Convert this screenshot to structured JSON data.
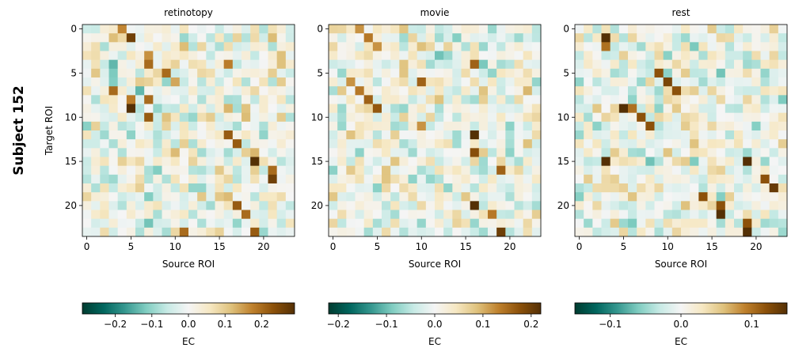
{
  "figure": {
    "row_label": "Subject 152",
    "matrix_size": 24,
    "xlabel": "Source ROI",
    "ylabel": "Target ROI",
    "cbar_label": "EC",
    "colormap": [
      "#003c30",
      "#01665e",
      "#35978f",
      "#80cdc1",
      "#c7eae5",
      "#f5f5f5",
      "#f6e8c3",
      "#dfc27d",
      "#bf812d",
      "#8c510a",
      "#543005"
    ]
  },
  "chart_data": [
    {
      "type": "heatmap",
      "title": "retinotopy",
      "x_ticks": [
        0,
        5,
        10,
        15,
        20
      ],
      "y_ticks": [
        0,
        5,
        10,
        15,
        20
      ],
      "vmin": -0.29,
      "vmax": 0.29,
      "cbar_ticks": [
        -0.2,
        -0.1,
        0.0,
        0.1,
        0.2
      ],
      "cbar_tick_labels": [
        "−0.2",
        "−0.1",
        "0.0",
        "0.1",
        "0.2"
      ],
      "seed": 152,
      "highlights": [
        [
          0,
          4,
          0.17
        ],
        [
          1,
          5,
          0.26
        ],
        [
          2,
          11,
          0.12
        ],
        [
          3,
          7,
          0.16
        ],
        [
          4,
          7,
          0.2
        ],
        [
          4,
          3,
          -0.14
        ],
        [
          5,
          9,
          0.2
        ],
        [
          6,
          10,
          0.14
        ],
        [
          6,
          9,
          -0.1
        ],
        [
          7,
          3,
          0.2
        ],
        [
          7,
          6,
          -0.14
        ],
        [
          8,
          5,
          0.18
        ],
        [
          8,
          7,
          0.2
        ],
        [
          9,
          5,
          0.29
        ],
        [
          9,
          8,
          -0.1
        ],
        [
          10,
          7,
          0.22
        ],
        [
          12,
          16,
          0.22
        ],
        [
          13,
          17,
          0.22
        ],
        [
          15,
          19,
          0.29
        ],
        [
          16,
          21,
          0.2
        ],
        [
          17,
          21,
          0.26
        ],
        [
          20,
          17,
          0.22
        ],
        [
          21,
          18,
          0.2
        ],
        [
          23,
          11,
          0.2
        ],
        [
          23,
          19,
          0.22
        ],
        [
          4,
          16,
          0.18
        ]
      ]
    },
    {
      "type": "heatmap",
      "title": "movie",
      "x_ticks": [
        0,
        5,
        10,
        15,
        20
      ],
      "y_ticks": [
        0,
        5,
        10,
        15,
        20
      ],
      "vmin": -0.22,
      "vmax": 0.22,
      "cbar_ticks": [
        -0.2,
        -0.1,
        0.0,
        0.1,
        0.2
      ],
      "cbar_tick_labels": [
        "−0.2",
        "−0.1",
        "0.0",
        "0.1",
        "0.2"
      ],
      "seed": 2152,
      "highlights": [
        [
          0,
          3,
          0.12
        ],
        [
          1,
          4,
          0.14
        ],
        [
          2,
          5,
          0.12
        ],
        [
          4,
          16,
          0.16
        ],
        [
          6,
          2,
          0.12
        ],
        [
          6,
          10,
          0.16
        ],
        [
          7,
          3,
          0.14
        ],
        [
          8,
          4,
          0.16
        ],
        [
          9,
          5,
          0.17
        ],
        [
          11,
          10,
          0.12
        ],
        [
          12,
          16,
          0.22
        ],
        [
          14,
          16,
          0.18
        ],
        [
          16,
          19,
          0.16
        ],
        [
          20,
          16,
          0.22
        ],
        [
          21,
          18,
          0.14
        ],
        [
          23,
          19,
          0.2
        ]
      ]
    },
    {
      "type": "heatmap",
      "title": "rest",
      "x_ticks": [
        0,
        5,
        10,
        15,
        20
      ],
      "y_ticks": [
        0,
        5,
        10,
        15,
        20
      ],
      "vmin": -0.15,
      "vmax": 0.15,
      "cbar_ticks": [
        -0.1,
        0.0,
        0.1
      ],
      "cbar_tick_labels": [
        "−0.1",
        "0.0",
        "0.1"
      ],
      "seed": 3152,
      "highlights": [
        [
          1,
          3,
          0.15
        ],
        [
          2,
          3,
          0.1
        ],
        [
          5,
          9,
          0.12
        ],
        [
          6,
          10,
          0.13
        ],
        [
          7,
          11,
          0.12
        ],
        [
          9,
          5,
          0.15
        ],
        [
          9,
          6,
          0.1
        ],
        [
          10,
          7,
          0.12
        ],
        [
          11,
          8,
          0.12
        ],
        [
          15,
          3,
          0.15
        ],
        [
          15,
          19,
          0.15
        ],
        [
          17,
          21,
          0.12
        ],
        [
          18,
          22,
          0.14
        ],
        [
          19,
          14,
          0.12
        ],
        [
          20,
          16,
          0.12
        ],
        [
          21,
          16,
          0.15
        ],
        [
          22,
          19,
          0.12
        ],
        [
          23,
          19,
          0.15
        ]
      ]
    }
  ]
}
